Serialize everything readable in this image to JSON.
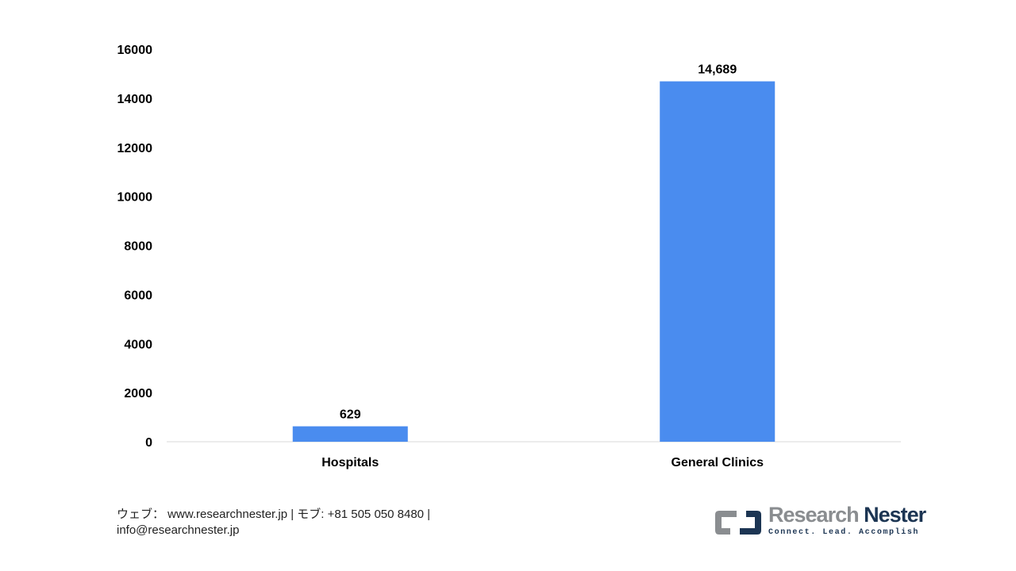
{
  "chart_data": {
    "type": "bar",
    "categories": [
      "Hospitals",
      "General Clinics"
    ],
    "values": [
      629,
      14689
    ],
    "data_labels": [
      "629",
      "14,689"
    ],
    "ylim": [
      0,
      16000
    ],
    "yticks": [
      0,
      2000,
      4000,
      6000,
      8000,
      10000,
      12000,
      14000,
      16000
    ],
    "grid": false,
    "bar_color": "#4a8cef",
    "title": "",
    "xlabel": "",
    "ylabel": ""
  },
  "footer": {
    "line1": "ウェブ：  www.researchnester.jp  | モブ: +81 505 050 8480 |",
    "line2": "info@researchnester.jp"
  },
  "logo": {
    "name_part1": "Research",
    "name_part2": "Nester",
    "tagline": "Connect. Lead. Accomplish",
    "colors": {
      "gray": "#8a8d90",
      "navy": "#1c3553"
    }
  }
}
